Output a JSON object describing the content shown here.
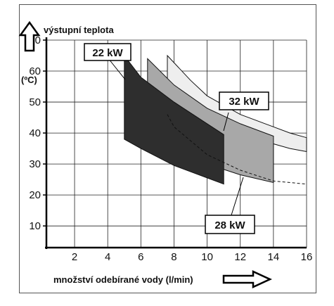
{
  "chart_data": {
    "type": "area",
    "title": "",
    "ylabel": "výstupní teplota",
    "yunit": "(ºC)",
    "xlabel": "množství odebírané vody (l/min)",
    "xlim": [
      0.3,
      16
    ],
    "ylim": [
      3,
      70
    ],
    "xticks": [
      "2",
      "4",
      "6",
      "8",
      "10",
      "12",
      "14",
      "16"
    ],
    "yticks": [
      "10",
      "20",
      "30",
      "40",
      "50",
      "60",
      "70"
    ],
    "grid": true,
    "series": [
      {
        "name": "32 kW",
        "color": "#eeeeee",
        "upper": [
          [
            7.6,
            65
          ],
          [
            9,
            57
          ],
          [
            10,
            52
          ],
          [
            12,
            46
          ],
          [
            14,
            42
          ],
          [
            15,
            40
          ],
          [
            16,
            38.5
          ]
        ],
        "lower": [
          [
            16,
            34
          ],
          [
            15,
            35
          ],
          [
            14,
            36.5
          ],
          [
            12,
            39.5
          ],
          [
            10,
            43.5
          ],
          [
            8,
            50
          ],
          [
            7.6,
            52
          ]
        ]
      },
      {
        "name": "28 kW",
        "color": "#a8a8a8",
        "upper": [
          [
            6.4,
            64
          ],
          [
            8,
            55.5
          ],
          [
            10,
            48
          ],
          [
            12,
            43
          ],
          [
            14,
            39
          ]
        ],
        "lower": [
          [
            14,
            24
          ],
          [
            12,
            26.5
          ],
          [
            10,
            30
          ],
          [
            8,
            35
          ],
          [
            6.4,
            40
          ]
        ]
      },
      {
        "name": "22 kW",
        "color": "#2e2e2e",
        "upper": [
          [
            5,
            65
          ],
          [
            6,
            58
          ],
          [
            8,
            50
          ],
          [
            10,
            43
          ],
          [
            11,
            39.5
          ]
        ],
        "lower": [
          [
            11,
            23.5
          ],
          [
            10,
            25.5
          ],
          [
            8,
            29.5
          ],
          [
            6,
            35
          ],
          [
            5,
            38
          ]
        ]
      }
    ],
    "dashed_line": [
      [
        7.6,
        46
      ],
      [
        8,
        42
      ],
      [
        10,
        33
      ],
      [
        12,
        28
      ],
      [
        14,
        24.5
      ],
      [
        16,
        23.5
      ]
    ],
    "annotations": [
      "22 kW",
      "32 kW",
      "28 kW"
    ]
  }
}
